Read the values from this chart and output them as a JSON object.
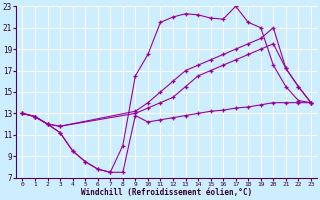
{
  "xlabel": "Windchill (Refroidissement éolien,°C)",
  "background_color": "#cceeff",
  "line_color": "#990099",
  "xlim": [
    -0.5,
    23.5
  ],
  "ylim": [
    7,
    23
  ],
  "xticks": [
    0,
    1,
    2,
    3,
    4,
    5,
    6,
    7,
    8,
    9,
    10,
    11,
    12,
    13,
    14,
    15,
    16,
    17,
    18,
    19,
    20,
    21,
    22,
    23
  ],
  "yticks": [
    7,
    9,
    11,
    13,
    15,
    17,
    19,
    21,
    23
  ],
  "grid_color": "#ffffff",
  "series": [
    {
      "x": [
        0,
        1,
        2,
        3,
        4,
        5,
        6,
        7,
        8,
        9,
        10,
        11,
        12,
        13,
        14,
        15,
        16,
        17,
        18,
        19,
        20,
        21,
        22,
        23
      ],
      "y": [
        13,
        12.7,
        12,
        11.2,
        9.5,
        8.5,
        7.8,
        7.5,
        7.5,
        12.8,
        12.2,
        12.4,
        12.6,
        12.8,
        13.0,
        13.2,
        13.3,
        13.5,
        13.6,
        13.8,
        14.0,
        14.0,
        14.0,
        14.0
      ]
    },
    {
      "x": [
        0,
        1,
        2,
        3,
        4,
        5,
        6,
        7,
        8,
        9,
        10,
        11,
        12,
        13,
        14,
        15,
        16,
        17,
        18,
        19,
        20,
        21,
        22,
        23
      ],
      "y": [
        13,
        12.7,
        12,
        11.2,
        9.5,
        8.5,
        7.8,
        7.5,
        10.0,
        16.5,
        18.5,
        21.5,
        22.0,
        22.3,
        22.2,
        21.9,
        21.8,
        23.0,
        21.5,
        21.0,
        17.5,
        15.5,
        14.2,
        14.0
      ]
    },
    {
      "x": [
        0,
        1,
        2,
        3,
        9,
        10,
        11,
        12,
        13,
        14,
        15,
        16,
        17,
        18,
        19,
        20,
        21,
        22,
        23
      ],
      "y": [
        13,
        12.7,
        12.0,
        11.8,
        13.0,
        13.5,
        14.0,
        14.5,
        15.5,
        16.5,
        17.0,
        17.5,
        18.0,
        18.5,
        19.0,
        19.5,
        17.2,
        15.5,
        14.0
      ]
    },
    {
      "x": [
        0,
        1,
        2,
        3,
        9,
        10,
        11,
        12,
        13,
        14,
        15,
        16,
        17,
        18,
        19,
        20,
        21,
        22,
        23
      ],
      "y": [
        13,
        12.7,
        12.0,
        11.8,
        13.2,
        14.0,
        15.0,
        16.0,
        17.0,
        17.5,
        18.0,
        18.5,
        19.0,
        19.5,
        20.0,
        21.0,
        17.2,
        15.5,
        14.0
      ]
    }
  ]
}
